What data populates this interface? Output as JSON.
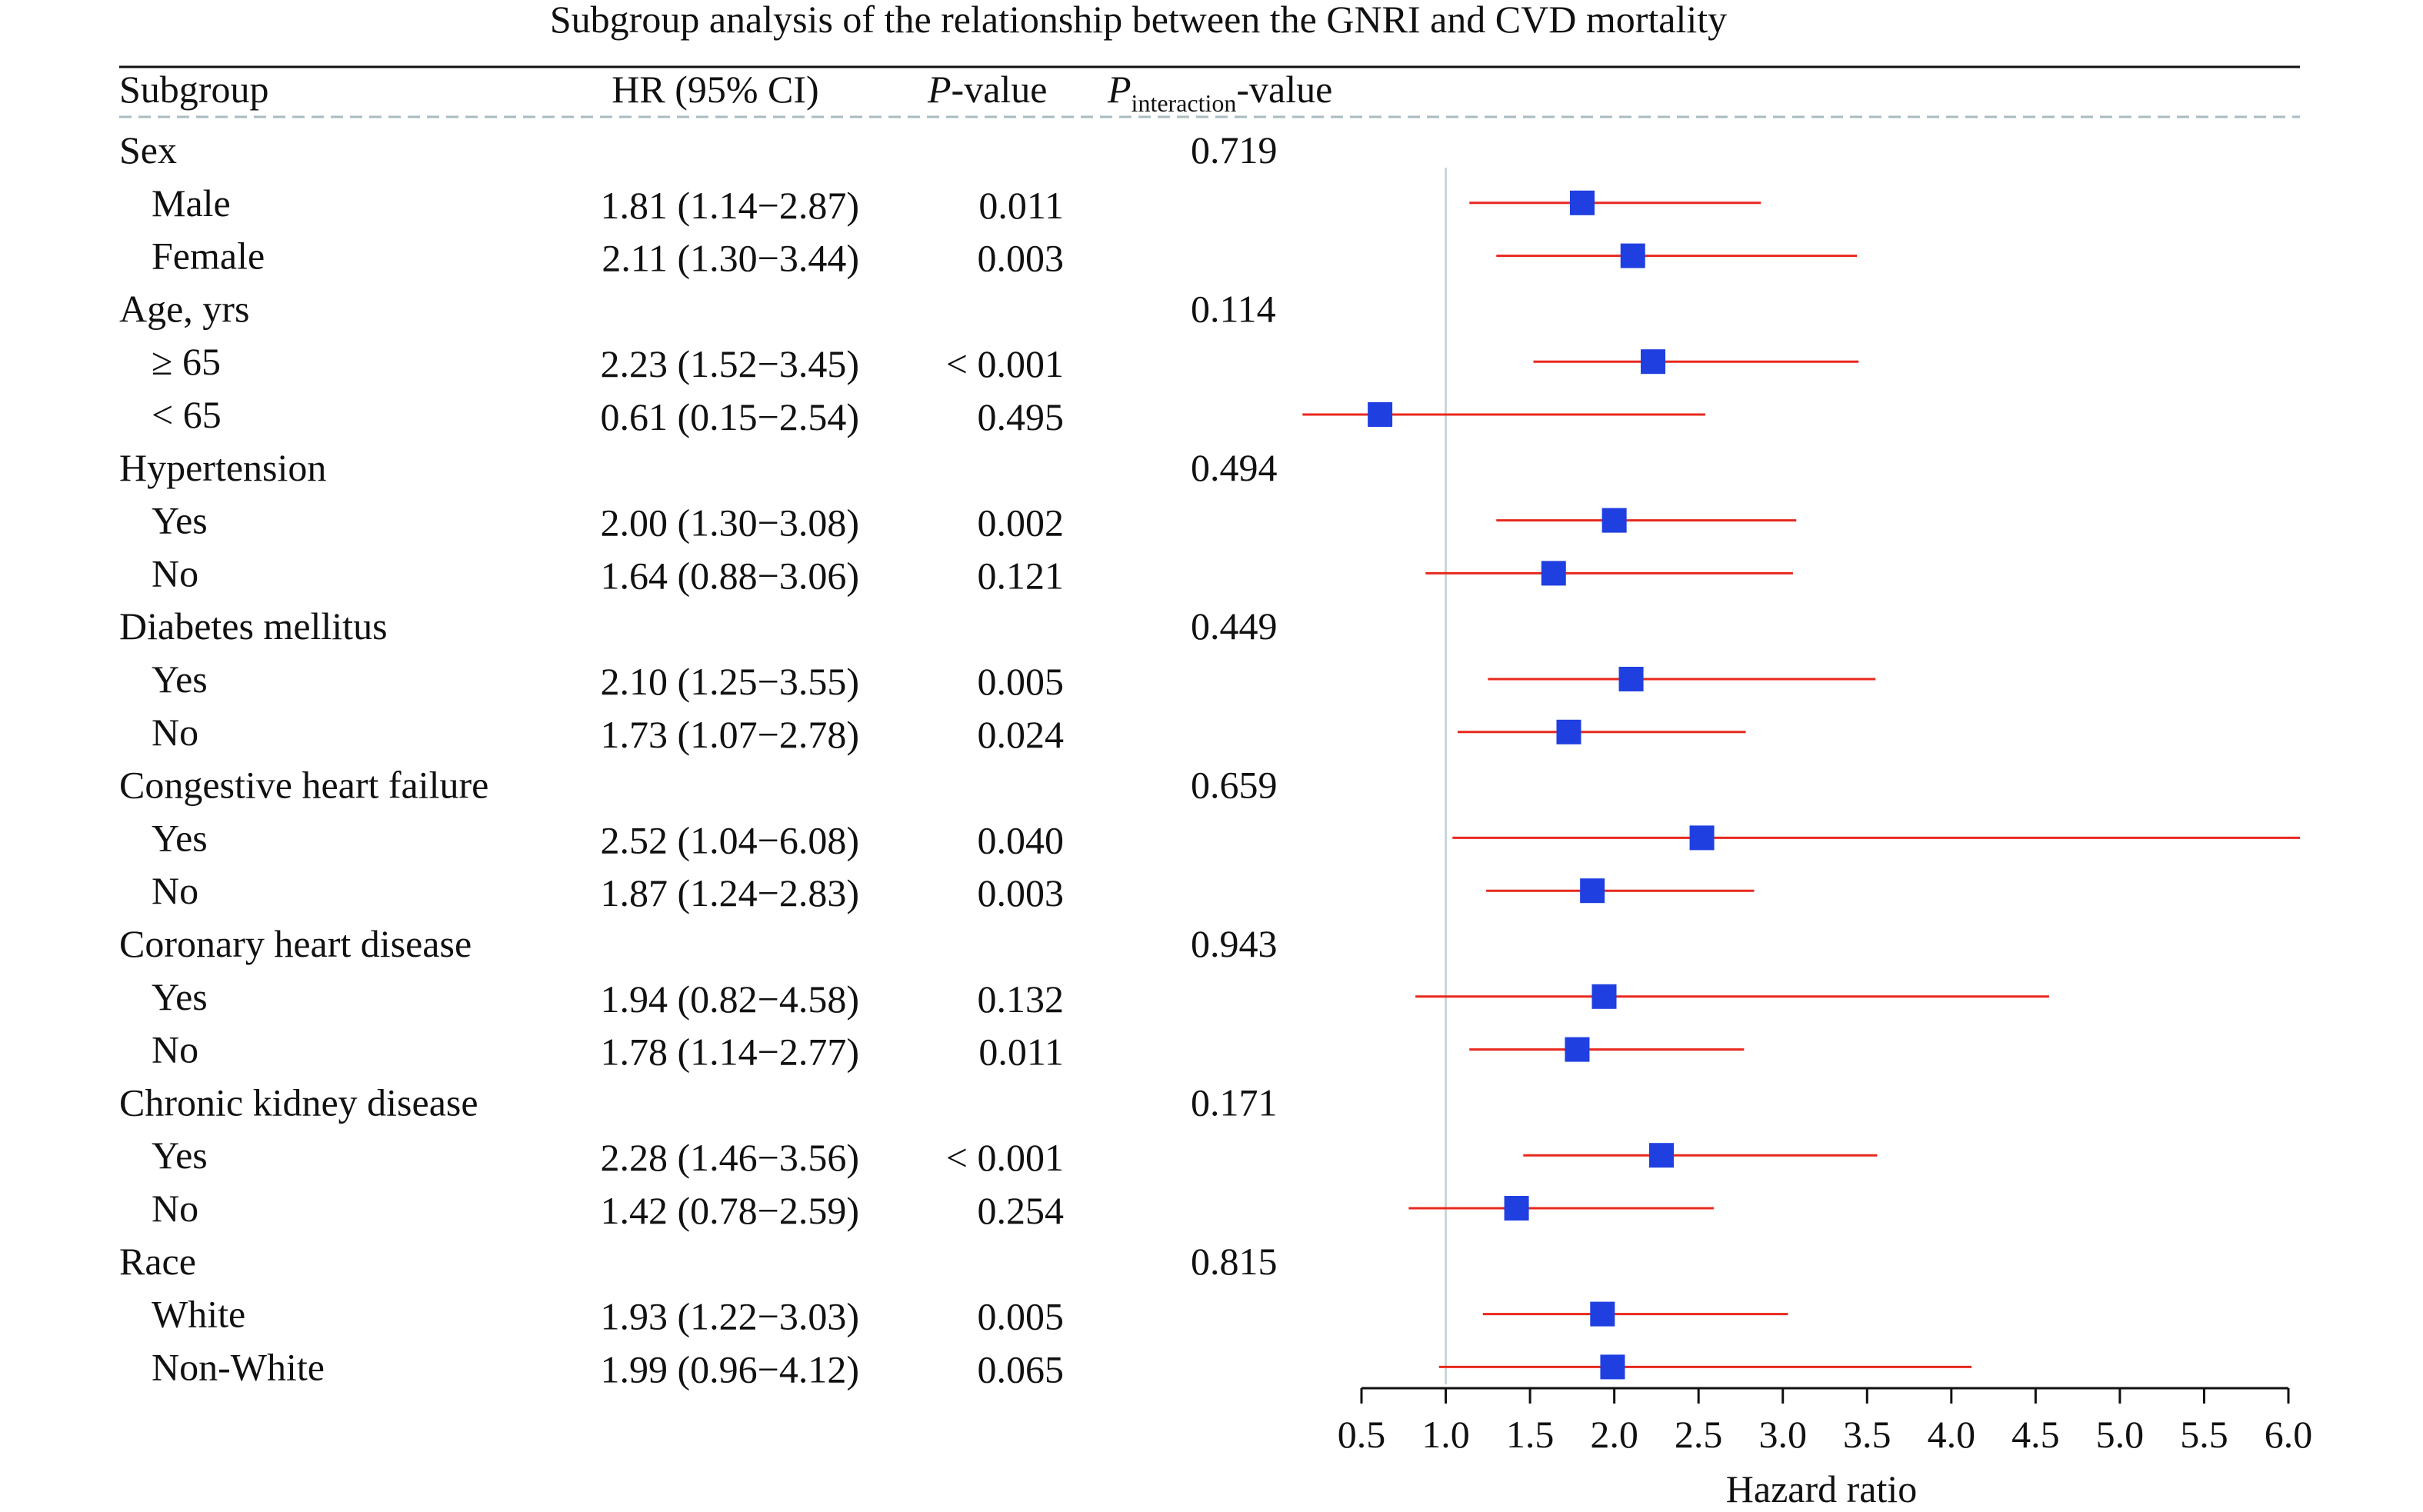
{
  "chart_data": {
    "type": "forest",
    "title": "Subgroup analysis of the relationship between the GNRI and CVD mortality",
    "columns": {
      "subgroup": "Subgroup",
      "hr": "HR (95% CI)",
      "p_italic": "P",
      "p_rest": "-value",
      "pint_italic": "P",
      "pint_sub": "interaction",
      "pint_rest": "-value"
    },
    "rows": [
      {
        "label": "Sex",
        "header": true,
        "p_interaction": "0.719"
      },
      {
        "label": "Male",
        "hr": 1.81,
        "lo": 1.14,
        "hi": 2.87,
        "hr_text": "1.81 (1.14−2.87)",
        "p": "0.011"
      },
      {
        "label": "Female",
        "hr": 2.11,
        "lo": 1.3,
        "hi": 3.44,
        "hr_text": "2.11 (1.30−3.44)",
        "p": "0.003"
      },
      {
        "label": "Age, yrs",
        "header": true,
        "p_interaction": "0.114"
      },
      {
        "label": "≥ 65",
        "hr": 2.23,
        "lo": 1.52,
        "hi": 3.45,
        "hr_text": "2.23 (1.52−3.45)",
        "p": "< 0.001"
      },
      {
        "label": "< 65",
        "hr": 0.61,
        "lo": 0.15,
        "hi": 2.54,
        "hr_text": "0.61 (0.15−2.54)",
        "p": "0.495"
      },
      {
        "label": "Hypertension",
        "header": true,
        "p_interaction": "0.494"
      },
      {
        "label": "Yes",
        "hr": 2.0,
        "lo": 1.3,
        "hi": 3.08,
        "hr_text": "2.00 (1.30−3.08)",
        "p": "0.002"
      },
      {
        "label": "No",
        "hr": 1.64,
        "lo": 0.88,
        "hi": 3.06,
        "hr_text": "1.64 (0.88−3.06)",
        "p": "0.121"
      },
      {
        "label": "Diabetes mellitus",
        "header": true,
        "p_interaction": "0.449"
      },
      {
        "label": "Yes",
        "hr": 2.1,
        "lo": 1.25,
        "hi": 3.55,
        "hr_text": "2.10 (1.25−3.55)",
        "p": "0.005"
      },
      {
        "label": "No",
        "hr": 1.73,
        "lo": 1.07,
        "hi": 2.78,
        "hr_text": "1.73 (1.07−2.78)",
        "p": "0.024"
      },
      {
        "label": "Congestive heart failure",
        "header": true,
        "p_interaction": "0.659"
      },
      {
        "label": "Yes",
        "hr": 2.52,
        "lo": 1.04,
        "hi": 6.08,
        "hr_text": "2.52 (1.04−6.08)",
        "p": "0.040"
      },
      {
        "label": "No",
        "hr": 1.87,
        "lo": 1.24,
        "hi": 2.83,
        "hr_text": "1.87 (1.24−2.83)",
        "p": "0.003"
      },
      {
        "label": "Coronary heart disease",
        "header": true,
        "p_interaction": "0.943"
      },
      {
        "label": "Yes",
        "hr": 1.94,
        "lo": 0.82,
        "hi": 4.58,
        "hr_text": "1.94 (0.82−4.58)",
        "p": "0.132"
      },
      {
        "label": "No",
        "hr": 1.78,
        "lo": 1.14,
        "hi": 2.77,
        "hr_text": "1.78 (1.14−2.77)",
        "p": "0.011"
      },
      {
        "label": "Chronic kidney disease",
        "header": true,
        "p_interaction": "0.171"
      },
      {
        "label": "Yes",
        "hr": 2.28,
        "lo": 1.46,
        "hi": 3.56,
        "hr_text": "2.28 (1.46−3.56)",
        "p": "< 0.001"
      },
      {
        "label": "No",
        "hr": 1.42,
        "lo": 0.78,
        "hi": 2.59,
        "hr_text": "1.42 (0.78−2.59)",
        "p": "0.254"
      },
      {
        "label": "Race",
        "header": true,
        "p_interaction": "0.815"
      },
      {
        "label": "White",
        "hr": 1.93,
        "lo": 1.22,
        "hi": 3.03,
        "hr_text": "1.93 (1.22−3.03)",
        "p": "0.005"
      },
      {
        "label": "Non-White",
        "hr": 1.99,
        "lo": 0.96,
        "hi": 4.12,
        "hr_text": "1.99 (0.96−4.12)",
        "p": "0.065"
      }
    ],
    "xaxis": {
      "label": "Hazard ratio",
      "ticks": [
        0.5,
        1.0,
        1.5,
        2.0,
        2.5,
        3.0,
        3.5,
        4.0,
        4.5,
        5.0,
        5.5,
        6.0
      ],
      "tick_labels": [
        "0.5",
        "1.0",
        "1.5",
        "2.0",
        "2.5",
        "3.0",
        "3.5",
        "4.0",
        "4.5",
        "5.0",
        "5.5",
        "6.0"
      ],
      "xlim": [
        0.5,
        6.0
      ],
      "reference": 1.0
    },
    "colors": {
      "marker": "#1f3fe0",
      "ci_line": "#e8281e",
      "reference_line": "#c8d6da",
      "header_dashed": "#a9bcc2"
    }
  }
}
